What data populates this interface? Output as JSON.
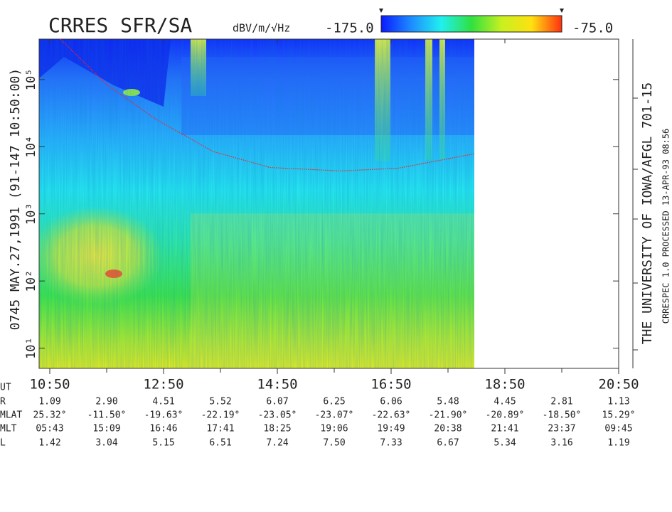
{
  "chart_data": {
    "type": "spectrogram",
    "title": "CRRES SFR/SA",
    "colorbar": {
      "label": "dBV/m/√Hz",
      "ticks": [
        {
          "value": -175,
          "label": "-175.0"
        },
        {
          "value": -75,
          "label": "-75.0"
        }
      ],
      "colors": [
        "#0a1aff",
        "#1e8cff",
        "#20f0f0",
        "#30e040",
        "#c8f020",
        "#ffe010",
        "#ff3010"
      ]
    },
    "left_label": "0745 MAY.27,1991 (91-147 10:50:00)",
    "right_labels": [
      "THE UNIVERSITY OF IOWA/AFGL 701-15",
      "CRRESPEC 1.0 PROCESSED 13-APR-93 08:56"
    ],
    "xlabel": "UT",
    "xlim": [
      638.75,
      1250
    ],
    "xticks": [
      {
        "value": 650,
        "label": "10:50"
      },
      {
        "value": 770,
        "label": "12:50"
      },
      {
        "value": 890,
        "label": "14:50"
      },
      {
        "value": 1010,
        "label": "16:50"
      },
      {
        "value": 1130,
        "label": "18:50"
      },
      {
        "value": 1250,
        "label": "20:50"
      }
    ],
    "xminorticks": [
      710,
      830,
      950,
      1070,
      1190
    ],
    "yscale": "log",
    "ylim": [
      5,
      400000
    ],
    "yticks": [
      {
        "value": 10,
        "label": "10¹"
      },
      {
        "value": 100,
        "label": "10²"
      },
      {
        "value": 1000,
        "label": "10³"
      },
      {
        "value": 10000,
        "label": "10⁴"
      },
      {
        "value": 100000,
        "label": "10⁵"
      }
    ],
    "line": {
      "color": "#ff2020",
      "x": [
        661.25,
        710,
        762.5,
        822.5,
        882.5,
        957.5,
        1017.5,
        1097.75
      ],
      "y": [
        400000,
        84300,
        25300,
        8440,
        4890,
        4350,
        4790,
        7830
      ]
    },
    "ephemeris": {
      "rows": [
        {
          "label": "R",
          "values": [
            "1.09",
            "2.90",
            "4.51",
            "5.52",
            "6.07",
            "6.25",
            "6.06",
            "5.48",
            "4.45",
            "2.81",
            "1.13"
          ]
        },
        {
          "label": "MLAT",
          "values": [
            "25.32°",
            "-11.50°",
            "-19.63°",
            "-22.19°",
            "-23.05°",
            "-23.07°",
            "-22.63°",
            "-21.90°",
            "-20.89°",
            "-18.50°",
            "15.29°"
          ]
        },
        {
          "label": "MLT",
          "values": [
            "05:43",
            "15:09",
            "16:46",
            "17:41",
            "18:25",
            "19:06",
            "19:49",
            "20:38",
            "21:41",
            "23:37",
            "09:45"
          ]
        },
        {
          "label": "L",
          "values": [
            "1.42",
            "3.04",
            "5.15",
            "6.51",
            "7.24",
            "7.50",
            "7.33",
            "6.67",
            "5.34",
            "3.16",
            "1.19"
          ]
        }
      ]
    }
  }
}
